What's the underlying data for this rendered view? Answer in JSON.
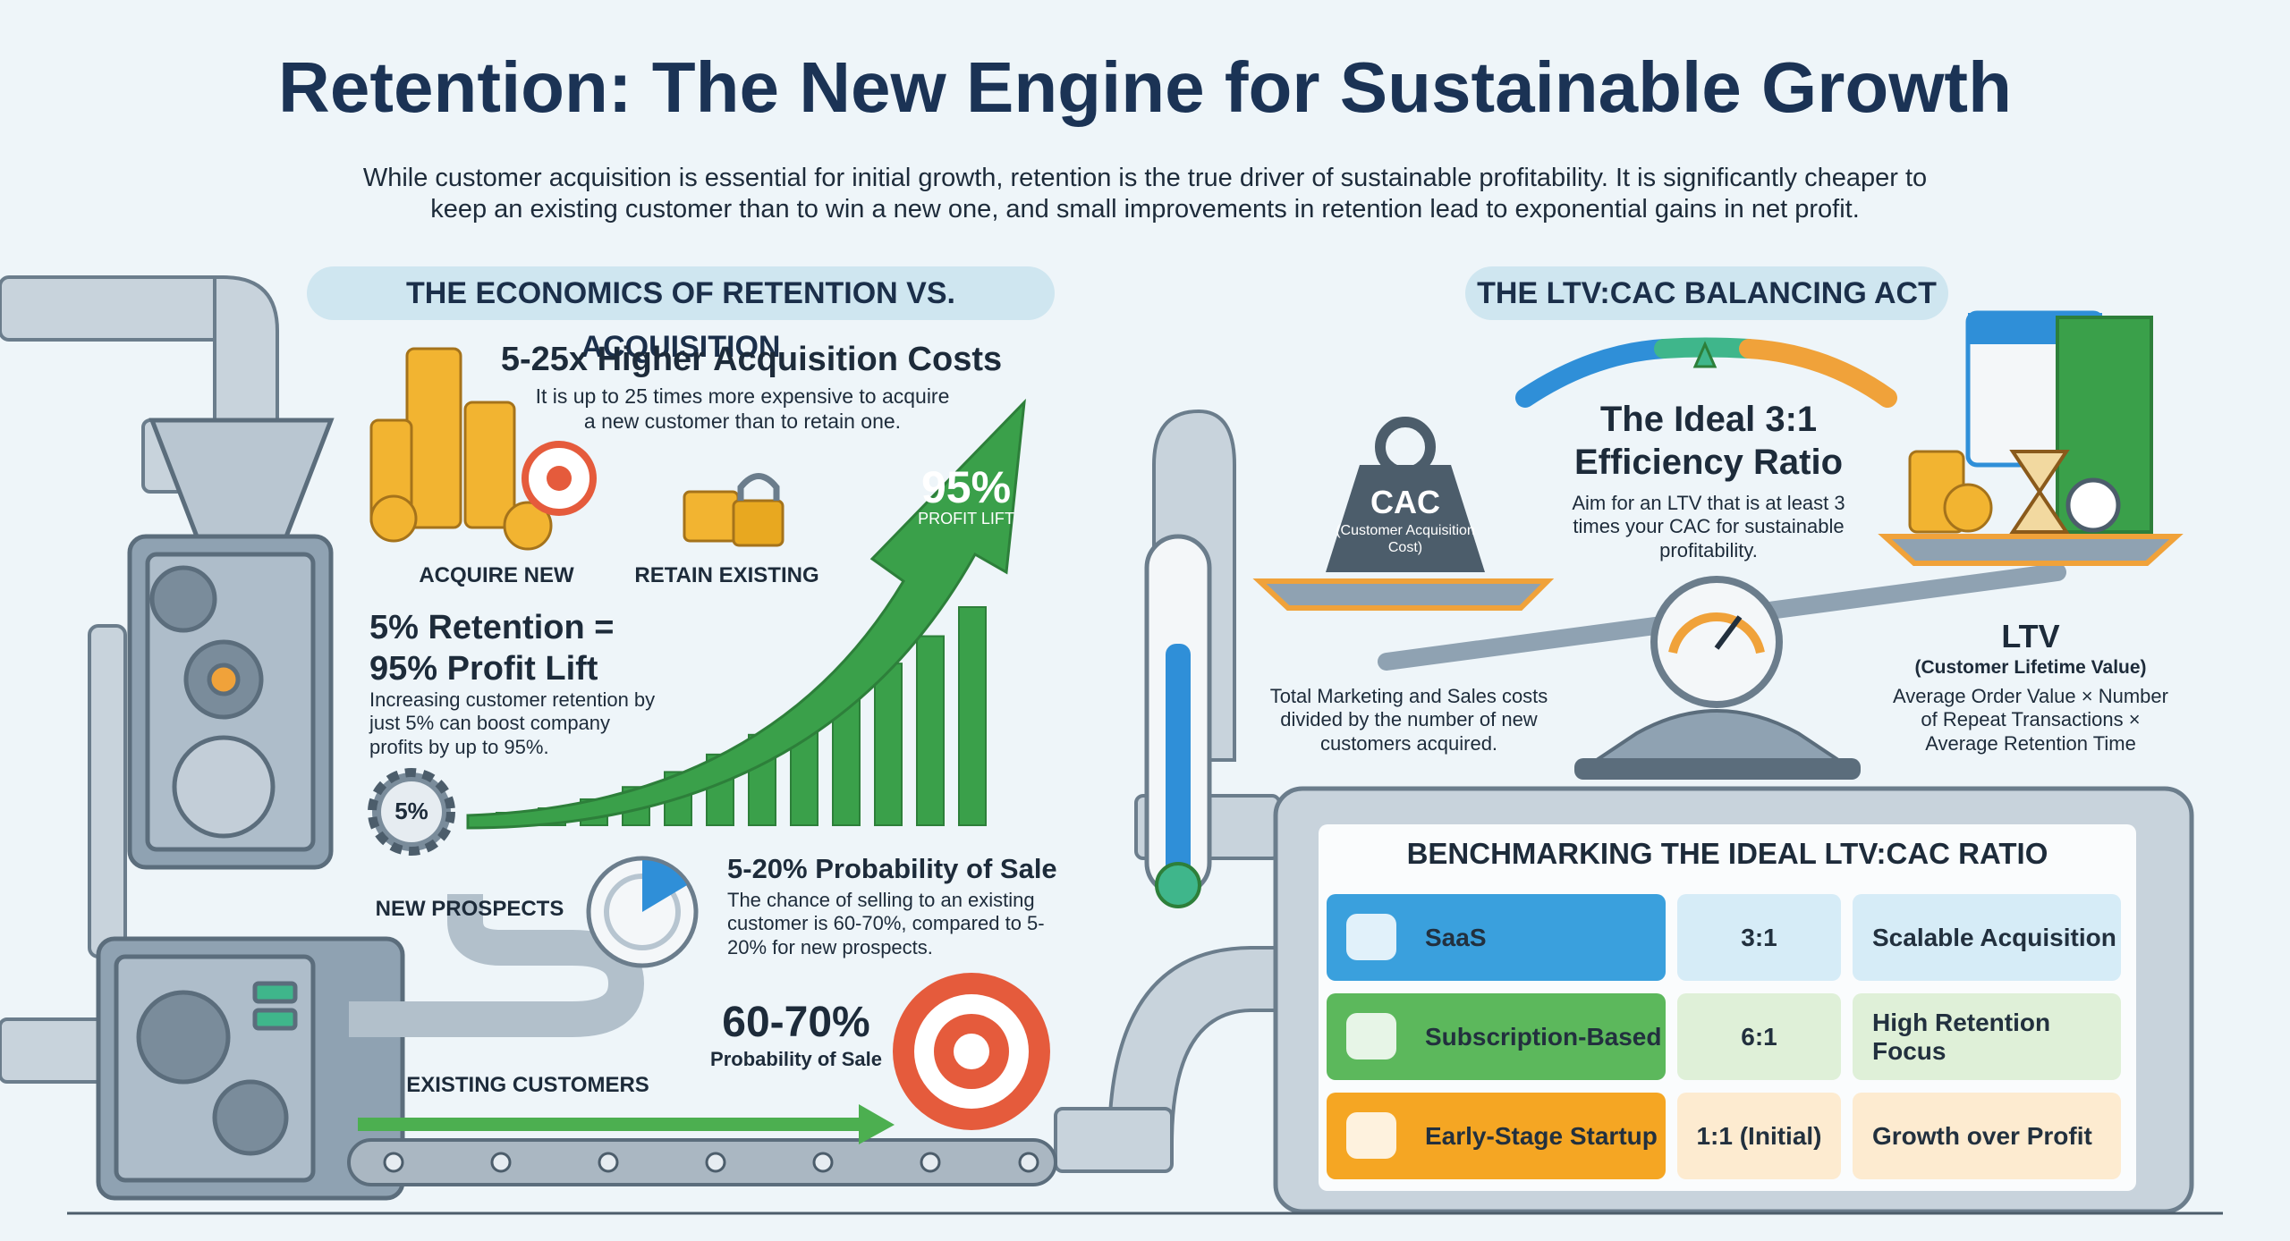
{
  "header": {
    "title": "Retention: The New Engine for Sustainable Growth",
    "subtitle": "While customer acquisition is essential for initial growth, retention is the true driver of sustainable profitability. It is significantly cheaper to keep an existing customer than to win a new one, and small improvements in retention lead to exponential gains in net profit."
  },
  "economics": {
    "heading": "THE ECONOMICS OF RETENTION VS. ACQUISITION",
    "acquisition_cost": {
      "title": "5-25x Higher Acquisition Costs",
      "text": "It is up to 25 times more expensive to acquire a new customer than to retain one."
    },
    "labels": {
      "acquire": "ACQUIRE NEW",
      "retain": "RETAIN EXISTING"
    },
    "profit_lift": {
      "title": "5% Retention = 95% Profit Lift",
      "text": "Increasing customer retention by just 5% can boost company profits by up to 95%.",
      "gear_label": "5%",
      "arrow_value": "95%",
      "arrow_caption": "PROFIT LIFT"
    },
    "probability": {
      "title": "5-20% Probability of Sale",
      "text": "The chance of selling to an existing customer is 60-70%, compared to 5-20% for new prospects.",
      "existing_value": "60-70%",
      "existing_caption": "Probability of Sale"
    },
    "funnel_labels": {
      "new": "NEW PROSPECTS",
      "existing": "EXISTING CUSTOMERS"
    }
  },
  "ltv_cac": {
    "heading": "THE LTV:CAC BALANCING ACT",
    "ratio": {
      "title": "The Ideal 3:1 Efficiency Ratio",
      "text": "Aim for an LTV that is at least 3 times your CAC for sustainable profitability."
    },
    "cac": {
      "label": "CAC",
      "sub": "(Customer Acquisition Cost)",
      "text": "Total Marketing and Sales costs divided by the number of new customers acquired."
    },
    "ltv": {
      "label": "LTV",
      "sub": "(Customer Lifetime Value)",
      "text": "Average Order Value × Number of Repeat Transactions × Average Retention Time"
    }
  },
  "table": {
    "title": "BENCHMARKING THE IDEAL LTV:CAC RATIO",
    "rows": [
      [
        "SaaS",
        "3:1",
        "Scalable Acquisition"
      ],
      [
        "Subscription-Based",
        "6:1",
        "High Retention Focus"
      ],
      [
        "Early-Stage Startup",
        "1:1 (Initial)",
        "Growth over Profit"
      ]
    ]
  }
}
